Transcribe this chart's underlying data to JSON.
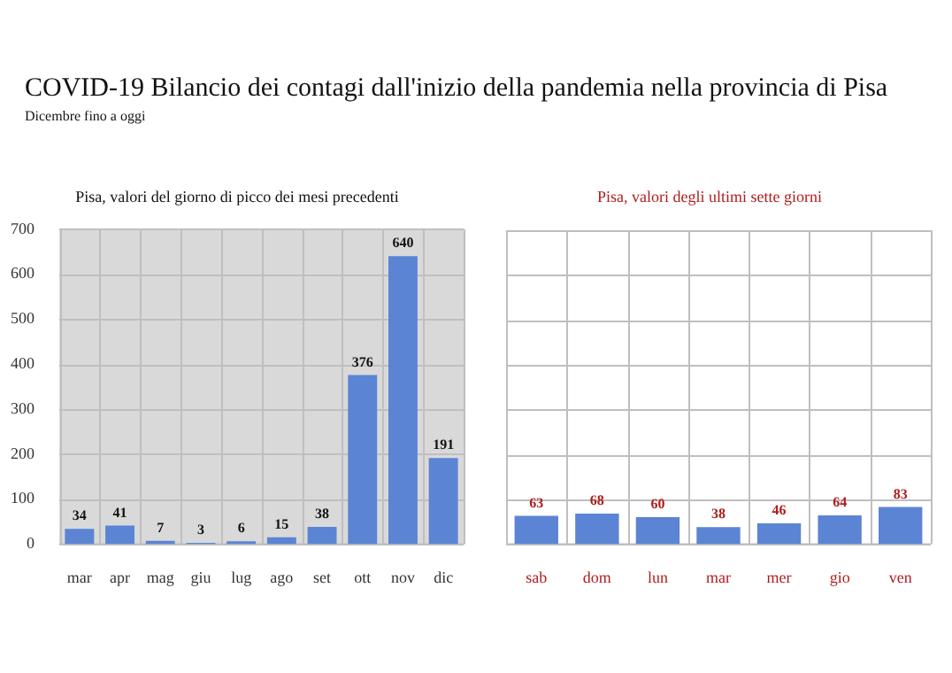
{
  "chart_data": [
    {
      "type": "other",
      "title": "COVID-19 Bilancio dei contagi dall'inizio della pandemia nella provincia di Pisa",
      "subtitle": "Dicembre fino a oggi"
    },
    {
      "type": "bar",
      "title": "Pisa, valori del giorno di picco dei mesi precedenti",
      "categories": [
        "mar",
        "apr",
        "mag",
        "giu",
        "lug",
        "ago",
        "set",
        "ott",
        "nov",
        "dic"
      ],
      "values": [
        34,
        41,
        7,
        3,
        6,
        15,
        38,
        376,
        640,
        191
      ],
      "color": "#5b84d4",
      "ylim": [
        0,
        700
      ],
      "yticks": [
        0,
        100,
        200,
        300,
        400,
        500,
        600,
        700
      ],
      "grid": true,
      "data_labels": true
    },
    {
      "type": "bar",
      "title": "Pisa, valori degli ultimi sette giorni",
      "categories": [
        "sab",
        "dom",
        "lun",
        "mar",
        "mer",
        "gio",
        "ven"
      ],
      "values": [
        63,
        68,
        60,
        38,
        46,
        64,
        83
      ],
      "color": "#5b84d4",
      "ylim": [
        0,
        700
      ],
      "yticks": [
        {
          "value": 0,
          "label": null
        },
        {
          "value": 100,
          "label": null
        },
        {
          "value": 200,
          "label": null
        },
        {
          "value": 300,
          "label": null
        },
        {
          "value": 400,
          "label": null
        },
        {
          "value": 500,
          "label": null
        },
        {
          "value": 600,
          "label": null
        },
        {
          "value": 700,
          "label": null
        }
      ],
      "tick_labels": "x",
      "grid": true,
      "data_labels": true
    }
  ]
}
